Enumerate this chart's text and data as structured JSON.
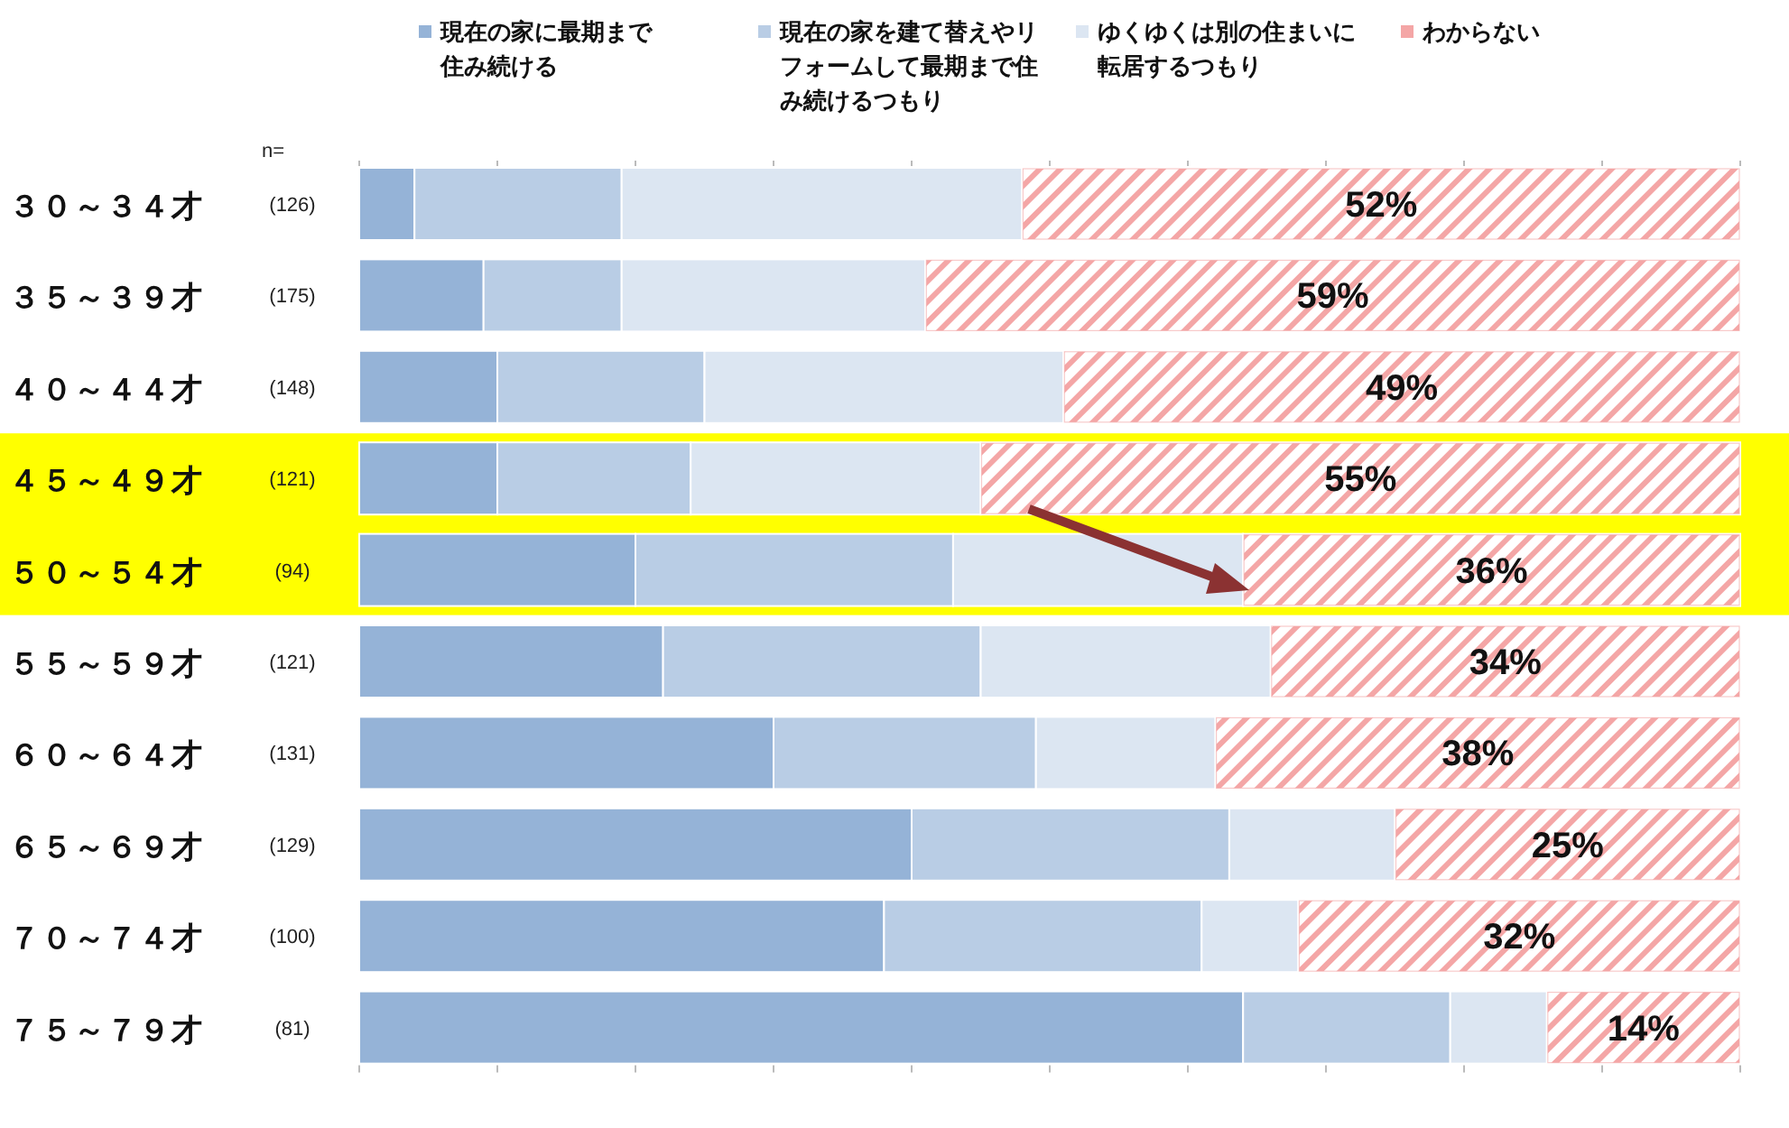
{
  "chart_data": {
    "type": "bar",
    "orientation": "horizontal",
    "stacked": true,
    "categories": [
      "３０～３４才",
      "３５～３９才",
      "４０～４４才",
      "４５～４９才",
      "５０～５４才",
      "５５～５９才",
      "６０～６４才",
      "６５～６９才",
      "７０～７４才",
      "７５～７９才"
    ],
    "series": [
      {
        "name": "現在の家に最期まで住み続ける",
        "color": "#95b3d7",
        "values": [
          4,
          9,
          10,
          10,
          20,
          22,
          30,
          40,
          38,
          64
        ]
      },
      {
        "name": "現在の家を建て替えやリフォームして最期まで住み続けるつもり",
        "color": "#b9cde5",
        "values": [
          15,
          10,
          15,
          14,
          23,
          23,
          19,
          23,
          23,
          15
        ]
      },
      {
        "name": "ゆくゆくは別の住まいに転居するつもり",
        "color": "#dce6f2",
        "values": [
          29,
          22,
          26,
          21,
          21,
          21,
          13,
          12,
          7,
          7
        ]
      },
      {
        "name": "わからない",
        "color": "#f4a6a6",
        "values": [
          52,
          59,
          49,
          55,
          36,
          34,
          38,
          25,
          32,
          14
        ],
        "value_labels": [
          "52%",
          "59%",
          "49%",
          "55%",
          "36%",
          "34%",
          "38%",
          "25%",
          "32%",
          "14%"
        ]
      }
    ],
    "xlim": [
      0,
      100
    ],
    "xticks": [
      {
        "value": 0,
        "label": null
      },
      {
        "value": 10,
        "label": null
      },
      {
        "value": 20,
        "label": null
      },
      {
        "value": 30,
        "label": null
      },
      {
        "value": 40,
        "label": null
      },
      {
        "value": 50,
        "label": null
      },
      {
        "value": 60,
        "label": null
      },
      {
        "value": 70,
        "label": null
      },
      {
        "value": 80,
        "label": null
      },
      {
        "value": 90,
        "label": null
      },
      {
        "value": 100,
        "label": null
      }
    ],
    "tick_labels": "y",
    "legend": "top",
    "bands": [
      {
        "axis": "y",
        "from": "４５～４９才",
        "to": "５０～５４才",
        "color": "#ffff00"
      }
    ],
    "annotations": [
      "n=",
      "(126)",
      "(175)",
      "(148)",
      "(121)",
      "(94)",
      "(121)",
      "(131)",
      "(129)",
      "(100)",
      "(81)"
    ]
  }
}
